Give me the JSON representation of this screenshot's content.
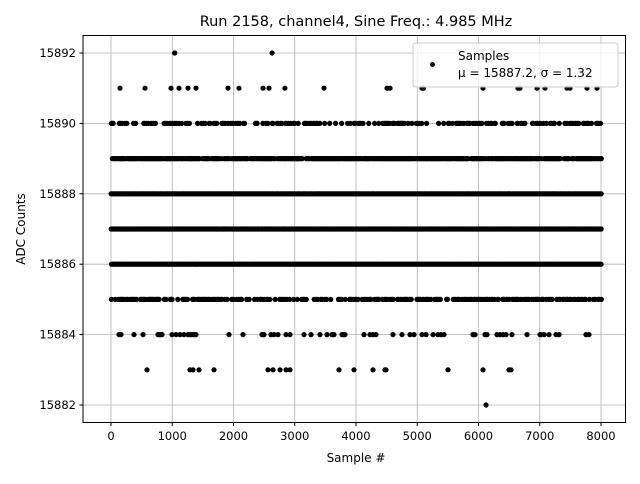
{
  "chart_data": {
    "type": "scatter",
    "title": "Run 2158, channel4, Sine Freq.: 4.985 MHz",
    "xlabel": "Sample #",
    "ylabel": "ADC Counts",
    "xlim": [
      -450,
      8400
    ],
    "ylim": [
      15881.5,
      15892.5
    ],
    "xticks": [
      0,
      1000,
      2000,
      3000,
      4000,
      5000,
      6000,
      7000,
      8000
    ],
    "yticks": [
      15882,
      15884,
      15886,
      15888,
      15890,
      15892
    ],
    "grid": true,
    "marker_color": "#000000",
    "legend": {
      "placement": "top-right",
      "label": "Samples",
      "stats": "μ = 15887.2, σ = 1.32"
    },
    "dense_levels": [
      {
        "y": 15885,
        "fill_fraction": 0.55
      },
      {
        "y": 15886,
        "fill_fraction": 1.0
      },
      {
        "y": 15887,
        "fill_fraction": 1.0
      },
      {
        "y": 15888,
        "fill_fraction": 1.0
      },
      {
        "y": 15889,
        "fill_fraction": 0.9
      },
      {
        "y": 15890,
        "fill_fraction": 0.45
      }
    ],
    "sparse_points": [
      {
        "y": 15892,
        "x": [
          1040,
          2630
        ]
      },
      {
        "y": 15891,
        "x": [
          147,
          555,
          980,
          1110,
          1257,
          1388,
          1910,
          2090,
          2482,
          2580,
          2840,
          3478,
          4506,
          4555,
          5078,
          5100,
          6073,
          6645,
          6678,
          6955,
          7086,
          7445,
          7494,
          7771,
          7935
        ]
      },
      {
        "y": 15884,
        "x": [
          131,
          163,
          376,
          522,
          767,
          800,
          833,
          996,
          1061,
          1127,
          1192,
          1257,
          1290,
          1322,
          1355,
          1388,
          1927,
          2155,
          2465,
          2498,
          2612,
          2661,
          2727,
          2857,
          2922,
          3151,
          3265,
          3412,
          3527,
          3608,
          3641,
          3771,
          3804,
          3820,
          4131,
          4229,
          4278,
          4327,
          4604,
          4751,
          4882,
          4947,
          5078,
          5143,
          5257,
          5339,
          5388,
          5437,
          5910,
          5943,
          6106,
          6139,
          6302,
          6351,
          6400,
          6449,
          6547,
          6792,
          7004,
          7020,
          7069,
          7151,
          7265,
          7314,
          7755,
          7804
        ]
      },
      {
        "y": 15883,
        "x": [
          588,
          1290,
          1339,
          1437,
          1682,
          2563,
          2645,
          2759,
          2857,
          2922,
          3722,
          3967,
          4278,
          4473,
          4490,
          5502,
          6073,
          6498,
          6531
        ]
      },
      {
        "y": 15882,
        "x": [
          6122
        ]
      }
    ]
  }
}
